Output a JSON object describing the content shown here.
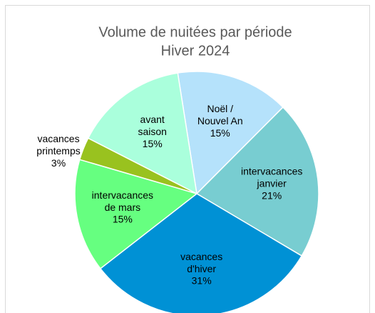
{
  "chart_data": {
    "type": "pie",
    "title": "Volume de nuitées par période",
    "subtitle": "Hiver 2024",
    "categories": [
      "Noël /\nNouvel An",
      "intervacances\njanvier",
      "vacances\nd'hiver",
      "intervacances\nde mars",
      "vacances\nprintemps",
      "avant\nsaison"
    ],
    "values": [
      15,
      21,
      31,
      15,
      3,
      15
    ],
    "value_labels": [
      "15%",
      "21%",
      "31%",
      "15%",
      "3%",
      "15%"
    ],
    "colors": [
      "#b5e2fb",
      "#78cdd1",
      "#0091d5",
      "#66ff80",
      "#99c21f",
      "#aaffdc"
    ]
  }
}
